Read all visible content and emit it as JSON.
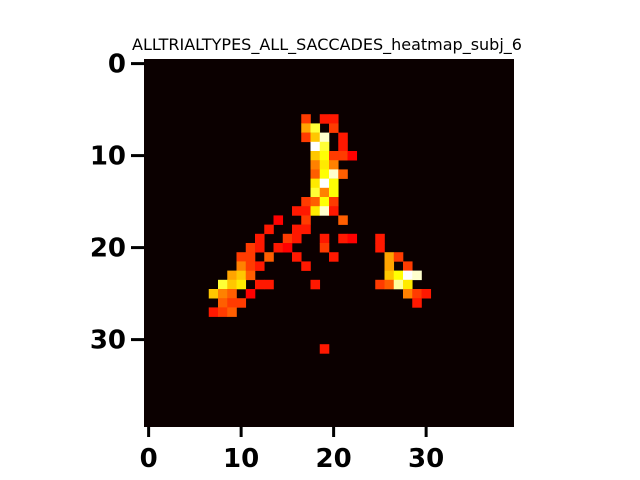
{
  "chart_data": {
    "type": "heatmap",
    "title": "ALLTRIALTYPES_ALL_SACCADES_heatmap_subj_6",
    "xlabel": "",
    "ylabel": "",
    "grid": false,
    "colormap": "hot",
    "background_color": "#0b0000",
    "rows": 40,
    "cols": 40,
    "xlim": [
      0,
      39
    ],
    "ylim": [
      39,
      0
    ],
    "x_ticks": [
      0,
      10,
      20,
      30
    ],
    "y_ticks": [
      0,
      10,
      20,
      30
    ],
    "x_tick_labels": [
      "0",
      "10",
      "20",
      "30"
    ],
    "y_tick_labels": [
      "0",
      "10",
      "20",
      "30"
    ],
    "cells": [
      [
        6,
        17,
        0.45
      ],
      [
        6,
        19,
        0.4
      ],
      [
        6,
        20,
        0.4
      ],
      [
        7,
        17,
        0.6
      ],
      [
        7,
        18,
        0.8
      ],
      [
        7,
        20,
        0.45
      ],
      [
        8,
        17,
        0.45
      ],
      [
        8,
        18,
        0.65
      ],
      [
        8,
        19,
        0.95
      ],
      [
        8,
        21,
        0.4
      ],
      [
        9,
        18,
        1.0
      ],
      [
        9,
        19,
        0.8
      ],
      [
        9,
        21,
        0.4
      ],
      [
        10,
        18,
        0.65
      ],
      [
        10,
        19,
        0.75
      ],
      [
        10,
        20,
        0.45
      ],
      [
        10,
        21,
        0.45
      ],
      [
        10,
        22,
        0.35
      ],
      [
        11,
        18,
        0.55
      ],
      [
        11,
        19,
        0.7
      ],
      [
        11,
        20,
        0.55
      ],
      [
        12,
        18,
        0.5
      ],
      [
        12,
        19,
        0.75
      ],
      [
        12,
        20,
        0.95
      ],
      [
        12,
        21,
        0.5
      ],
      [
        13,
        18,
        0.7
      ],
      [
        13,
        19,
        1.0
      ],
      [
        13,
        20,
        0.75
      ],
      [
        14,
        18,
        0.8
      ],
      [
        14,
        19,
        0.55
      ],
      [
        14,
        20,
        0.75
      ],
      [
        15,
        17,
        0.45
      ],
      [
        15,
        18,
        0.5
      ],
      [
        15,
        19,
        0.75
      ],
      [
        15,
        20,
        0.45
      ],
      [
        16,
        16,
        0.4
      ],
      [
        16,
        17,
        0.4
      ],
      [
        16,
        18,
        0.7
      ],
      [
        16,
        19,
        0.95
      ],
      [
        16,
        20,
        0.4
      ],
      [
        17,
        14,
        0.35
      ],
      [
        17,
        17,
        0.45
      ],
      [
        17,
        21,
        0.5
      ],
      [
        18,
        13,
        0.4
      ],
      [
        18,
        16,
        0.4
      ],
      [
        18,
        17,
        0.4
      ],
      [
        19,
        12,
        0.4
      ],
      [
        19,
        15,
        0.45
      ],
      [
        19,
        16,
        0.4
      ],
      [
        19,
        19,
        0.4
      ],
      [
        19,
        21,
        0.4
      ],
      [
        19,
        22,
        0.35
      ],
      [
        19,
        25,
        0.4
      ],
      [
        20,
        11,
        0.45
      ],
      [
        20,
        12,
        0.4
      ],
      [
        20,
        14,
        0.4
      ],
      [
        20,
        15,
        0.35
      ],
      [
        20,
        19,
        0.45
      ],
      [
        20,
        25,
        0.4
      ],
      [
        21,
        10,
        0.45
      ],
      [
        21,
        11,
        0.45
      ],
      [
        21,
        13,
        0.5
      ],
      [
        21,
        16,
        0.4
      ],
      [
        21,
        20,
        0.4
      ],
      [
        21,
        26,
        0.6
      ],
      [
        21,
        27,
        0.45
      ],
      [
        22,
        10,
        0.55
      ],
      [
        22,
        11,
        0.45
      ],
      [
        22,
        12,
        0.4
      ],
      [
        22,
        17,
        0.4
      ],
      [
        22,
        26,
        0.6
      ],
      [
        22,
        28,
        0.45
      ],
      [
        23,
        9,
        0.6
      ],
      [
        23,
        10,
        0.65
      ],
      [
        23,
        11,
        0.5
      ],
      [
        23,
        26,
        0.65
      ],
      [
        23,
        27,
        0.75
      ],
      [
        23,
        28,
        1.0
      ],
      [
        23,
        29,
        0.95
      ],
      [
        24,
        8,
        0.8
      ],
      [
        24,
        9,
        0.65
      ],
      [
        24,
        10,
        0.7
      ],
      [
        24,
        12,
        0.4
      ],
      [
        24,
        13,
        0.4
      ],
      [
        24,
        18,
        0.4
      ],
      [
        24,
        25,
        0.45
      ],
      [
        24,
        26,
        0.5
      ],
      [
        24,
        27,
        0.9
      ],
      [
        24,
        28,
        0.7
      ],
      [
        25,
        7,
        0.65
      ],
      [
        25,
        8,
        0.55
      ],
      [
        25,
        9,
        0.5
      ],
      [
        25,
        11,
        0.35
      ],
      [
        25,
        28,
        0.55
      ],
      [
        25,
        29,
        0.45
      ],
      [
        25,
        30,
        0.4
      ],
      [
        26,
        8,
        0.5
      ],
      [
        26,
        9,
        0.45
      ],
      [
        26,
        10,
        0.45
      ],
      [
        26,
        29,
        0.4
      ],
      [
        27,
        7,
        0.4
      ],
      [
        27,
        8,
        0.45
      ],
      [
        27,
        9,
        0.5
      ],
      [
        31,
        19,
        0.4
      ]
    ]
  }
}
